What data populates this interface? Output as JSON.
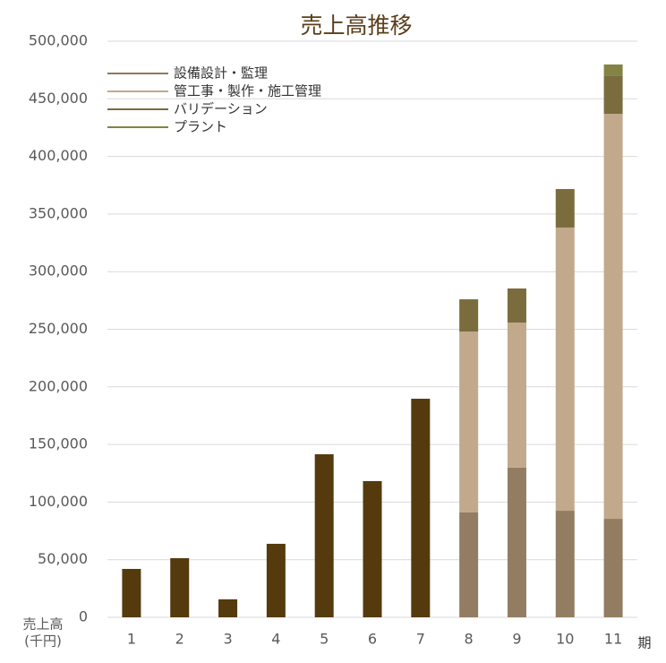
{
  "chart_data": {
    "type": "stacked_bar",
    "title": "売上高推移",
    "y_label": [
      "売上高",
      "(千円)"
    ],
    "x_label": "期",
    "categories": [
      "1",
      "2",
      "3",
      "4",
      "5",
      "6",
      "7",
      "8",
      "9",
      "10",
      "11"
    ],
    "series": [
      {
        "name": "設備設計・監理",
        "color": "#8f7a60",
        "colors": [
          "#553a0e",
          "#553a0e",
          "#553a0e",
          "#553a0e",
          "#553a0e",
          "#553a0e",
          "#553a0e",
          "#937d62",
          "#937d62",
          "#937d62",
          "#937d62"
        ],
        "values": [
          42000,
          51300,
          15600,
          63800,
          141500,
          118200,
          189700,
          91000,
          130000,
          92500,
          85500
        ]
      },
      {
        "name": "管工事・製作・施工管理",
        "color": "#c2a98c",
        "values": [
          null,
          null,
          null,
          null,
          null,
          null,
          null,
          157000,
          125800,
          245800,
          351500
        ]
      },
      {
        "name": "バリデーション",
        "color": "#7b6c3e",
        "values": [
          null,
          null,
          null,
          null,
          null,
          null,
          null,
          28000,
          29600,
          33400,
          32700
        ]
      },
      {
        "name": "プラント",
        "color": "#838444",
        "values": [
          null,
          null,
          null,
          null,
          null,
          null,
          null,
          null,
          null,
          null,
          10100
        ]
      }
    ],
    "ylim": [
      0,
      500000
    ],
    "yticks": [
      0,
      {
        "value": 50000,
        "label": "50,000"
      },
      {
        "value": 100000,
        "label": "100,000"
      },
      {
        "value": 150000,
        "label": "150,000"
      },
      {
        "value": 200000,
        "label": "200,000"
      },
      {
        "value": 250000,
        "label": "250,000"
      },
      {
        "value": 300000,
        "label": "300,000"
      },
      {
        "value": 350000,
        "label": "350,000"
      },
      {
        "value": 400000,
        "label": "400,000"
      },
      {
        "value": 450000,
        "label": "450,000"
      },
      {
        "value": 500000,
        "label": "500,000"
      }
    ],
    "grid": true,
    "legend": "top-left"
  }
}
